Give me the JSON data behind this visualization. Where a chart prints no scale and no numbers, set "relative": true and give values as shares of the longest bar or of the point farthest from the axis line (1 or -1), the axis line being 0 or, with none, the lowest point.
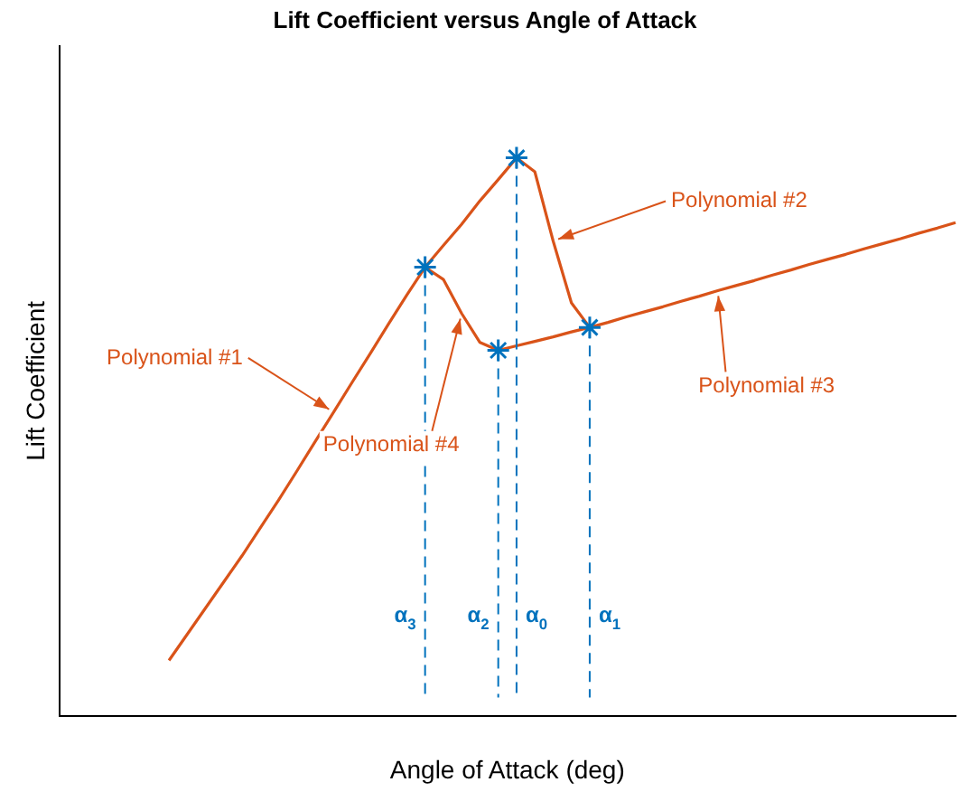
{
  "chart_data": {
    "type": "line",
    "title": "Lift Coefficient versus Angle of Attack",
    "xlabel": "Angle of Attack (deg)",
    "ylabel": "Lift Coefficient",
    "relative": true,
    "grid": false,
    "legend": false,
    "marker": "none",
    "line_style": "solid",
    "categories": [
      null,
      null,
      null,
      null,
      null,
      null,
      null,
      null,
      null,
      null,
      null,
      null,
      null,
      null,
      null,
      null,
      null,
      null,
      null,
      null,
      null,
      null,
      null,
      null,
      null,
      null,
      null,
      null,
      null,
      null,
      null,
      null,
      null,
      null,
      null,
      null,
      null,
      null,
      null,
      null,
      null,
      null,
      null,
      null,
      null,
      null,
      null,
      null,
      null,
      null
    ],
    "series": [
      {
        "color": "#d95319",
        "values": [
          null,
          null,
          null,
          null,
          null,
          null,
          0.099,
          0.146,
          0.193,
          0.24,
          0.287,
          0.337,
          0.387,
          0.439,
          0.492,
          0.544,
          0.597,
          0.649,
          0.702,
          0.754,
          0.804,
          0.843,
          0.881,
          0.923,
          0.961,
          1,
          null,
          null,
          null,
          null,
          null,
          null,
          null,
          null,
          null,
          null,
          null,
          null,
          null,
          null,
          null,
          null,
          null,
          null,
          null,
          null,
          null,
          null,
          null,
          null
        ]
      },
      {
        "color": "#d95319",
        "values": [
          null,
          null,
          null,
          null,
          null,
          null,
          null,
          null,
          null,
          null,
          null,
          null,
          null,
          null,
          null,
          null,
          null,
          null,
          null,
          null,
          null,
          null,
          null,
          null,
          null,
          1,
          0.975,
          0.851,
          0.74,
          0.696,
          null,
          null,
          null,
          null,
          null,
          null,
          null,
          null,
          null,
          null,
          null,
          null,
          null,
          null,
          null,
          null,
          null,
          null,
          null,
          null
        ]
      },
      {
        "color": "#d95319",
        "values": [
          null,
          null,
          null,
          null,
          null,
          null,
          null,
          null,
          null,
          null,
          null,
          null,
          null,
          null,
          null,
          null,
          null,
          null,
          null,
          null,
          null,
          null,
          null,
          null,
          0.655,
          0.663,
          0.671,
          0.679,
          0.688,
          0.696,
          0.705,
          0.715,
          0.724,
          0.733,
          0.743,
          0.752,
          0.762,
          0.771,
          0.78,
          0.79,
          0.799,
          0.809,
          0.818,
          0.827,
          0.837,
          0.846,
          0.855,
          0.865,
          0.874,
          0.884
        ]
      },
      {
        "color": "#d95319",
        "values": [
          null,
          null,
          null,
          null,
          null,
          null,
          null,
          null,
          null,
          null,
          null,
          null,
          null,
          null,
          null,
          null,
          null,
          null,
          null,
          null,
          0.804,
          0.782,
          0.721,
          0.669,
          0.655,
          null,
          null,
          null,
          null,
          null,
          null,
          null,
          null,
          null,
          null,
          null,
          null,
          null,
          null,
          null,
          null,
          null,
          null,
          null,
          null,
          null,
          null,
          null,
          null,
          null
        ]
      }
    ],
    "ref_lines": [
      {
        "axis": "x",
        "label": "α$_{3}$",
        "color": "#0072bd",
        "line_style": "dashed"
      },
      {
        "axis": "x",
        "label": "α$_{2}$",
        "color": "#0072bd",
        "line_style": "dashed"
      },
      {
        "axis": "x",
        "label": "α$_{0}$",
        "color": "#0072bd",
        "line_style": "dashed"
      },
      {
        "axis": "x",
        "label": "α$_{1}$",
        "color": "#0072bd",
        "line_style": "dashed"
      }
    ],
    "annotations": [
      "Polynomial #1",
      "Polynomial #2",
      "Polynomial #3",
      "Polynomial #4"
    ]
  }
}
